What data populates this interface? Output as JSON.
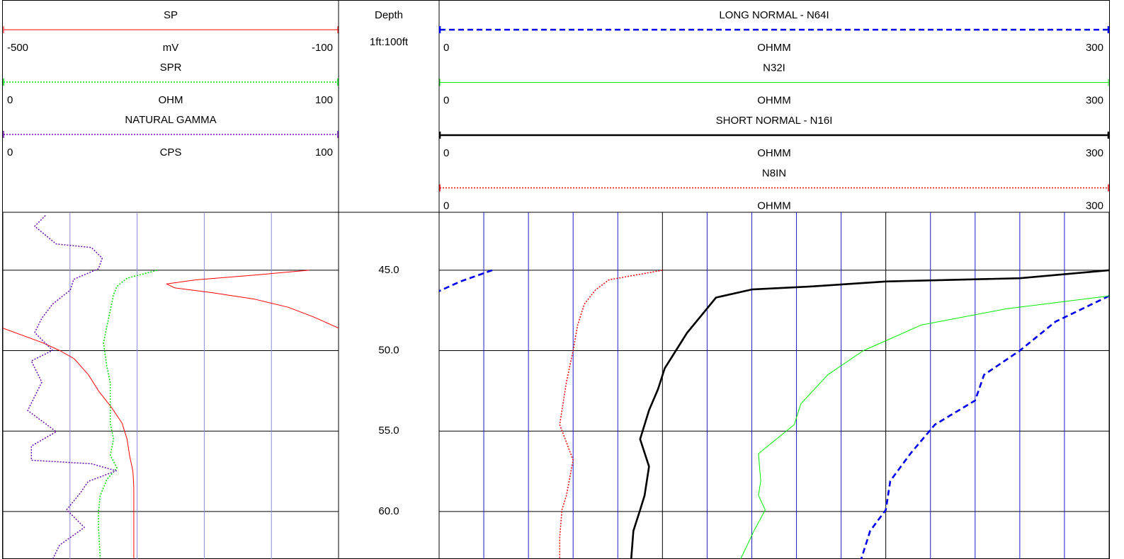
{
  "chart_data": [
    {
      "type": "line",
      "xlim": [
        0,
        100
      ],
      "xticks": [
        0,
        20,
        40,
        60,
        80,
        100
      ],
      "series": [
        {
          "name": "SP",
          "unit": "mV",
          "xlim": [
            -500,
            -100
          ],
          "color": "#ff0000",
          "style": "solid",
          "depth": [
            45.0,
            45.3,
            45.6,
            45.85,
            46.1,
            46.4,
            46.8,
            47.3,
            47.9,
            48.6,
            null,
            48.6,
            49.5,
            50.0,
            50.5,
            51.5,
            52.5,
            53.5,
            54.5,
            55.5,
            56.5,
            57.5,
            58.5,
            60.0,
            62.9
          ],
          "values": [
            -135,
            -200,
            -270,
            -305,
            -295,
            -250,
            -200,
            -160,
            -130,
            -100,
            null,
            -500,
            -453,
            -432,
            -415,
            -398,
            -386,
            -371,
            -358,
            -352,
            -349,
            -345,
            -344,
            -344,
            -344
          ]
        },
        {
          "name": "SPR",
          "unit": "OHM",
          "xlim": [
            0,
            100
          ],
          "color": "#00dd00",
          "style": "dotted",
          "depth": [
            45.0,
            45.5,
            46.0,
            46.5,
            47.5,
            48.5,
            49.5,
            51.0,
            52.0,
            53.0,
            54.5,
            55.5,
            56.5,
            57.3,
            58.0,
            59.0,
            60.0,
            61.0,
            62.9
          ],
          "values": [
            46,
            37,
            34,
            33,
            32,
            31,
            30,
            31,
            32,
            32,
            32,
            33,
            32,
            34,
            31,
            29,
            28.5,
            28.5,
            29
          ]
        },
        {
          "name": "NATURAL GAMMA",
          "unit": "CPS",
          "xlim": [
            0,
            100
          ],
          "color": "#6a0dad",
          "style": "dotted",
          "depth": [
            41.6,
            42.27,
            43.37,
            43.59,
            44.25,
            44.91,
            45.57,
            46.23,
            47.11,
            47.99,
            48.87,
            49.98,
            50.64,
            51.96,
            53.72,
            55.04,
            55.93,
            56.81,
            57.03,
            57.47,
            58.13,
            58.79,
            59.89,
            60.99,
            62.09,
            62.97
          ],
          "values": [
            12.7,
            9.5,
            15.9,
            26.4,
            29.6,
            28.5,
            21.1,
            20.1,
            14.8,
            11.6,
            9.5,
            14.8,
            8.5,
            11.6,
            7.4,
            15.9,
            8.5,
            8.5,
            26.4,
            33.8,
            25.4,
            23.3,
            19.0,
            24.3,
            16.9,
            14.8
          ]
        }
      ]
    },
    {
      "type": "depth",
      "title": "Depth",
      "subtitle": "1ft:100ft",
      "ylim": [
        41.4,
        62.95
      ],
      "yticks": [
        {
          "value": 45,
          "label": "45.0"
        },
        {
          "value": 50,
          "label": "50.0"
        },
        {
          "value": 55,
          "label": "55.0"
        },
        {
          "value": 60,
          "label": "60.0"
        }
      ]
    },
    {
      "type": "line",
      "xlim": [
        0,
        300
      ],
      "xticks": [
        0,
        100,
        200,
        300
      ],
      "minor_xticks": [
        20,
        40,
        60,
        80,
        120,
        140,
        160,
        180,
        220,
        240,
        260,
        280
      ],
      "series": [
        {
          "name": "LONG NORMAL - N64I",
          "unit": "OHMM",
          "xlim": [
            0,
            300
          ],
          "color": "#0000ee",
          "style": "dashed",
          "depth": [
            45.0,
            45.7,
            46.3,
            null,
            46.6,
            48.2,
            50.0,
            51.5,
            53.1,
            54.6,
            56.4,
            58.1,
            59.9,
            61.2,
            62.95
          ],
          "values": [
            23.8,
            9.5,
            0,
            null,
            300,
            276,
            260,
            244,
            240,
            222,
            211,
            202,
            200,
            193,
            189
          ]
        },
        {
          "name": "N32I",
          "unit": "OHMM",
          "xlim": [
            0,
            300
          ],
          "color": "#00ee00",
          "style": "solid",
          "depth": [
            46.6,
            47.4,
            48.4,
            50.0,
            51.5,
            53.3,
            54.6,
            56.4,
            58.1,
            59.0,
            59.9,
            61.2,
            62.95
          ],
          "values": [
            300,
            254,
            216,
            190,
            174,
            162,
            159,
            143,
            144,
            143,
            146,
            141,
            135
          ]
        },
        {
          "name": "SHORT NORMAL - N16I",
          "unit": "OHMM",
          "xlim": [
            0,
            300
          ],
          "color": "#000000",
          "style": "thick",
          "depth": [
            45.0,
            45.5,
            45.7,
            46.0,
            46.2,
            46.7,
            47.55,
            48.9,
            50.0,
            51.1,
            52.4,
            53.7,
            55.5,
            57.2,
            59.0,
            59.9,
            61.2,
            62.95
          ],
          "values": [
            300,
            260,
            200,
            168,
            140,
            124,
            119,
            111,
            106,
            101,
            98,
            94,
            90,
            94,
            92,
            90,
            87,
            86
          ]
        },
        {
          "name": "N8IN",
          "unit": "OHMM",
          "xlim": [
            0,
            300
          ],
          "color": "#ee0000",
          "style": "dotted",
          "depth": [
            45.0,
            45.6,
            46.23,
            47.11,
            48.43,
            50.0,
            51.96,
            54.6,
            56.8,
            59.0,
            59.9,
            61.6,
            62.95
          ],
          "values": [
            100,
            76,
            70,
            65,
            62,
            60,
            57,
            54,
            60,
            57,
            55,
            54,
            54
          ]
        }
      ]
    }
  ]
}
